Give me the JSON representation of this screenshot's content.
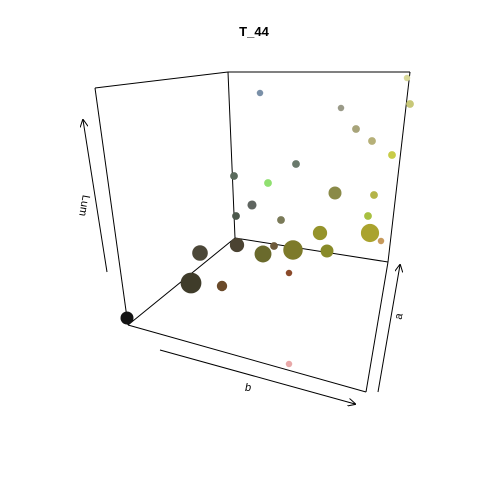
{
  "chart_data": {
    "type": "scatter",
    "projection": "3d",
    "title": "T_44",
    "xlabel": "b",
    "ylabel": "a",
    "zlabel": "Lum",
    "grid": false,
    "points": [
      {
        "color": "#131313",
        "size": 1.0
      },
      {
        "color": "#3f3c2a",
        "size": 1.6
      },
      {
        "color": "#4b4738",
        "size": 1.2
      },
      {
        "color": "#6a4a2a",
        "size": 0.8
      },
      {
        "color": "#4b4332",
        "size": 1.1
      },
      {
        "color": "#6a6a2c",
        "size": 1.3
      },
      {
        "color": "#6e5a3a",
        "size": 0.6
      },
      {
        "color": "#7d7a2a",
        "size": 1.5
      },
      {
        "color": "#8a4a2a",
        "size": 0.5
      },
      {
        "color": "#888a28",
        "size": 1.0
      },
      {
        "color": "#95932b",
        "size": 1.1
      },
      {
        "color": "#aaa32e",
        "size": 1.4
      },
      {
        "color": "#c79a5c",
        "size": 0.5
      },
      {
        "color": "#5f6560",
        "size": 0.7
      },
      {
        "color": "#4c584c",
        "size": 0.6
      },
      {
        "color": "#7a7a58",
        "size": 0.6
      },
      {
        "color": "#8a8a48",
        "size": 1.0
      },
      {
        "color": "#90e070",
        "size": 0.6
      },
      {
        "color": "#5a6a5c",
        "size": 0.6
      },
      {
        "color": "#a8c040",
        "size": 0.6
      },
      {
        "color": "#b4b448",
        "size": 0.6
      },
      {
        "color": "#6a7a6c",
        "size": 0.6
      },
      {
        "color": "#a8a47a",
        "size": 0.6
      },
      {
        "color": "#b6b078",
        "size": 0.6
      },
      {
        "color": "#c8cc48",
        "size": 0.6
      },
      {
        "color": "#9a9a88",
        "size": 0.5
      },
      {
        "color": "#7a90a8",
        "size": 0.5
      },
      {
        "color": "#c8c878",
        "size": 0.6
      },
      {
        "color": "#d8d898",
        "size": 0.5
      },
      {
        "color": "#e8a8a8",
        "size": 0.5
      }
    ]
  }
}
